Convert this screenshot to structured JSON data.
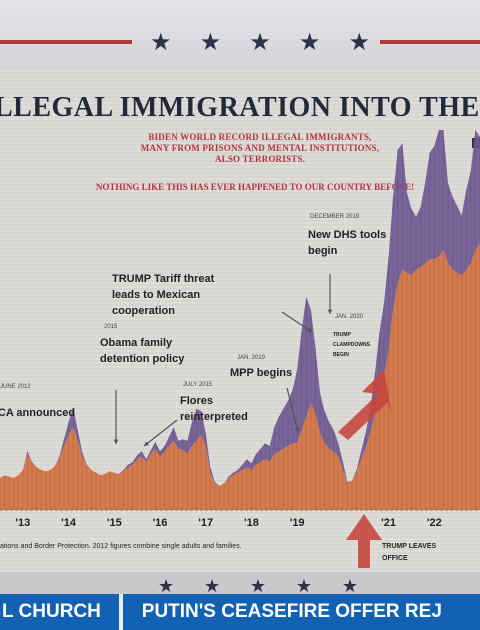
{
  "headline": "LLEGAL IMMIGRATION INTO THE",
  "subhead_lines": [
    "BIDEN WORLD RECORD ILLEGAL IMMIGRANTS,",
    "MANY FROM PRISONS AND MENTAL INSTITUTIONS,",
    "ALSO TERRORISTS."
  ],
  "subhead_emphasis": "NOTHING LIKE THIS HAS EVER HAPPENED TO OUR COUNTRY BEFORE!",
  "ticker": {
    "left": "L CHURCH",
    "right": "PUTIN'S CEASEFIRE OFFER REJ"
  },
  "colors": {
    "accent_red": "#b23a3a",
    "area_orange": "#d47a4d",
    "area_purple": "#6f5a95",
    "navy": "#2c3348",
    "ticker_blue": "#1261b3"
  },
  "chart_data": {
    "type": "area",
    "xlim": [
      2012.5,
      2023.0
    ],
    "ylim": [
      0,
      300
    ],
    "x_ticks": [
      {
        "x": 2013,
        "label": "'13"
      },
      {
        "x": 2014,
        "label": "'14"
      },
      {
        "x": 2015,
        "label": "'15"
      },
      {
        "x": 2016,
        "label": "'16"
      },
      {
        "x": 2017,
        "label": "'17"
      },
      {
        "x": 2018,
        "label": "'18"
      },
      {
        "x": 2019,
        "label": "'19"
      },
      {
        "x": 2021,
        "label": "'21"
      },
      {
        "x": 2022,
        "label": "'22"
      }
    ],
    "x": [
      2012.5,
      2012.6,
      2012.7,
      2012.8,
      2012.9,
      2013.0,
      2013.1,
      2013.2,
      2013.3,
      2013.4,
      2013.5,
      2013.6,
      2013.7,
      2013.8,
      2013.9,
      2014.0,
      2014.1,
      2014.2,
      2014.3,
      2014.4,
      2014.5,
      2014.6,
      2014.7,
      2014.8,
      2014.9,
      2015.0,
      2015.1,
      2015.2,
      2015.3,
      2015.4,
      2015.5,
      2015.6,
      2015.7,
      2015.8,
      2015.9,
      2016.0,
      2016.1,
      2016.2,
      2016.3,
      2016.4,
      2016.5,
      2016.6,
      2016.7,
      2016.8,
      2016.9,
      2017.0,
      2017.1,
      2017.2,
      2017.3,
      2017.4,
      2017.5,
      2017.6,
      2017.7,
      2017.8,
      2017.9,
      2018.0,
      2018.1,
      2018.2,
      2018.3,
      2018.4,
      2018.5,
      2018.6,
      2018.7,
      2018.8,
      2018.9,
      2019.0,
      2019.1,
      2019.2,
      2019.3,
      2019.4,
      2019.5,
      2019.6,
      2019.7,
      2019.8,
      2019.9,
      2020.0,
      2020.1,
      2020.2,
      2020.3,
      2020.4,
      2020.5,
      2020.6,
      2020.7,
      2020.8,
      2020.9,
      2021.0,
      2021.1,
      2021.2,
      2021.3,
      2021.4,
      2021.5,
      2021.6,
      2021.7,
      2021.8,
      2021.9,
      2022.0,
      2022.1,
      2022.2,
      2022.3,
      2022.4,
      2022.5,
      2022.6,
      2022.7,
      2022.8,
      2022.9,
      2023.0
    ],
    "series": [
      {
        "values": [
          24,
          26,
          25,
          24,
          26,
          30,
          42,
          35,
          32,
          30,
          29,
          30,
          33,
          38,
          48,
          56,
          62,
          52,
          40,
          34,
          30,
          28,
          26,
          27,
          29,
          28,
          27,
          29,
          32,
          34,
          38,
          40,
          36,
          42,
          46,
          40,
          44,
          48,
          52,
          46,
          45,
          42,
          48,
          52,
          56,
          48,
          28,
          20,
          18,
          20,
          24,
          26,
          28,
          30,
          32,
          30,
          34,
          36,
          38,
          36,
          42,
          44,
          46,
          48,
          50,
          50,
          60,
          70,
          80,
          72,
          58,
          50,
          46,
          44,
          40,
          30,
          20,
          22,
          28,
          38,
          46,
          58,
          72,
          88,
          100,
          120,
          150,
          170,
          180,
          178,
          176,
          180,
          182,
          185,
          188,
          188,
          190,
          195,
          185,
          180,
          178,
          176,
          180,
          185,
          195,
          200
        ]
      },
      {
        "values": [
          0,
          0,
          0,
          0,
          0,
          0,
          2,
          1,
          0,
          0,
          0,
          0,
          0,
          2,
          5,
          10,
          15,
          8,
          3,
          0,
          0,
          0,
          0,
          0,
          0,
          0,
          0,
          1,
          2,
          2,
          3,
          4,
          2,
          3,
          5,
          4,
          4,
          7,
          10,
          6,
          8,
          10,
          18,
          24,
          18,
          10,
          4,
          1,
          0,
          0,
          1,
          2,
          2,
          4,
          6,
          5,
          8,
          10,
          12,
          12,
          20,
          26,
          30,
          34,
          40,
          55,
          75,
          90,
          70,
          50,
          30,
          24,
          20,
          16,
          10,
          6,
          1,
          0,
          2,
          6,
          12,
          18,
          30,
          45,
          55,
          70,
          85,
          100,
          95,
          60,
          50,
          40,
          45,
          60,
          80,
          85,
          95,
          90,
          60,
          55,
          50,
          45,
          60,
          70,
          90,
          80
        ]
      }
    ],
    "events": [
      {
        "date": "JUNE 2012",
        "label": "DACA announced",
        "x": 2012.6,
        "value": 32
      },
      {
        "date": "2015",
        "label": "Obama family detention policy",
        "x": 2015.0,
        "value": 40
      },
      {
        "date": "JULY 2015",
        "label": "Flores reinterpreted",
        "x": 2015.5,
        "value": 44
      },
      {
        "date": "",
        "label": "TRUMP Tariff threat leads to Mexican cooperation",
        "x": 2019.1,
        "value": 150
      },
      {
        "date": "JAN. 2019",
        "label": "MPP begins",
        "x": 2018.7,
        "value": 90
      },
      {
        "date": "DECEMBER 2019",
        "label": "New DHS tools begin",
        "x": 2019.4,
        "value": 155
      },
      {
        "date": "JAN. 2020",
        "label": "TRUMP CLAMPDOWNS BEGIN",
        "x": 2020.0,
        "value": 135
      },
      {
        "date": "",
        "label": "TRUMP LEAVES OFFICE",
        "x": 2020.65,
        "value": 0
      }
    ],
    "source_note": "ations and Border Protection. 2012 figures combine single adults and families."
  }
}
